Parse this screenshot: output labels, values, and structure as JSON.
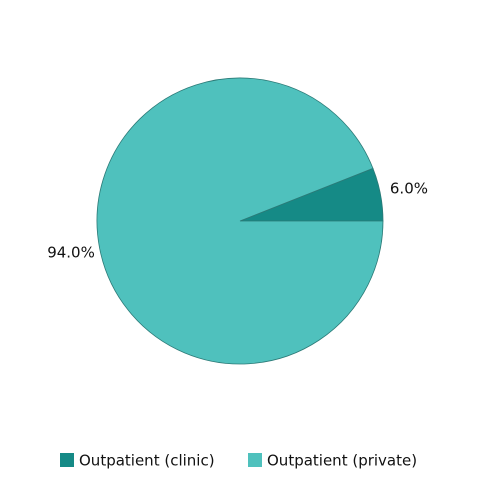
{
  "chart_data": {
    "type": "pie",
    "categories": [
      "Outpatient (clinic)",
      "Outpatient (private)"
    ],
    "values": [
      6.0,
      94.0
    ],
    "value_labels": [
      "6.0%",
      "94.0%"
    ],
    "colors": [
      "#158a86",
      "#4fc1bd"
    ],
    "legend": "bottom"
  }
}
